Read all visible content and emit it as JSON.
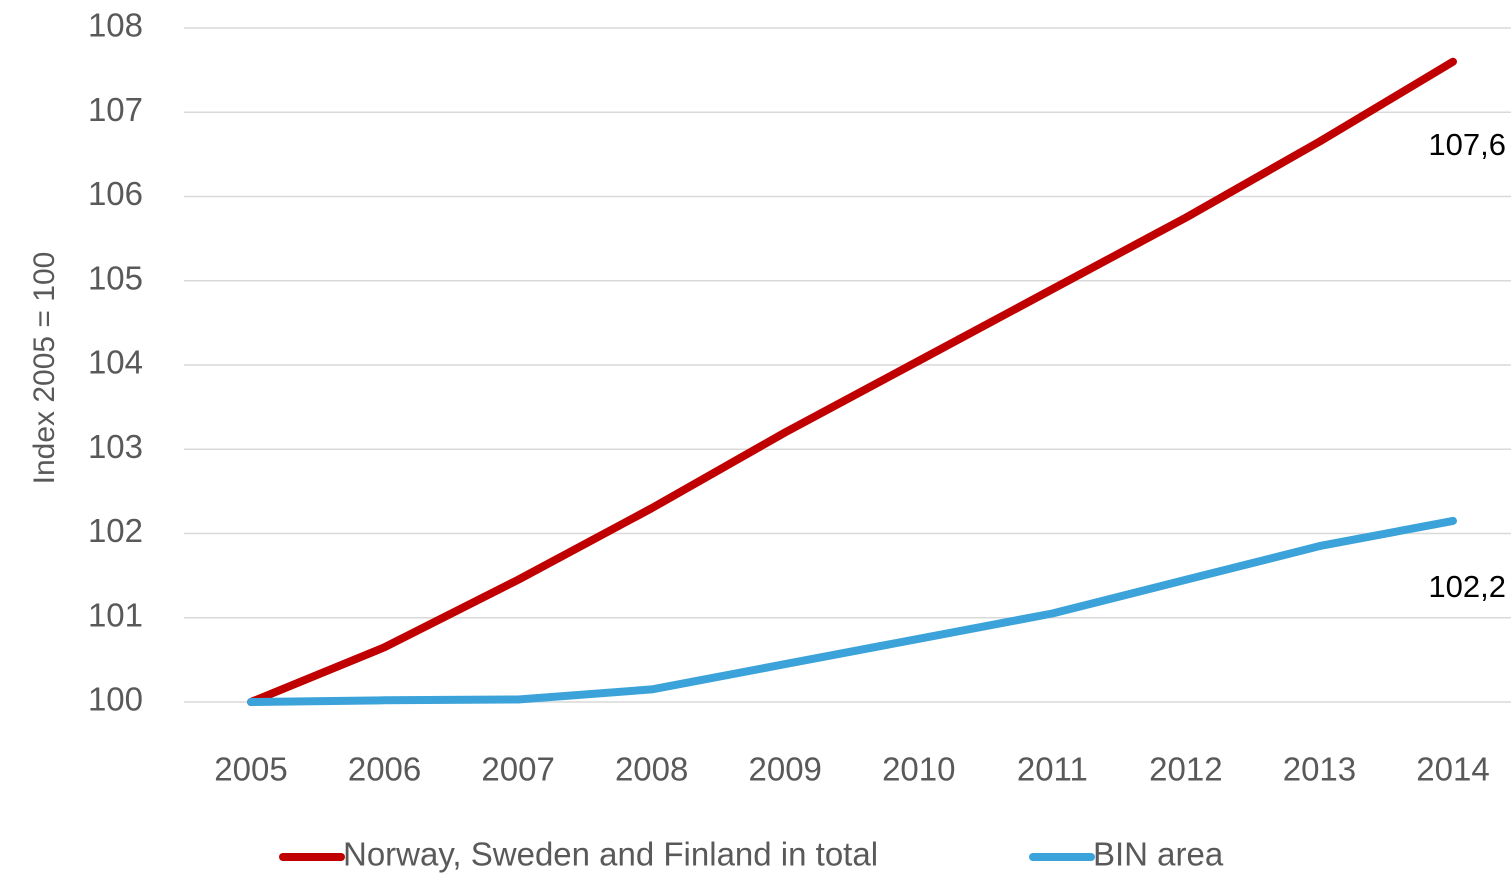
{
  "chart_data": {
    "type": "line",
    "x": [
      "2005",
      "2006",
      "2007",
      "2008",
      "2009",
      "2010",
      "2011",
      "2012",
      "2013",
      "2014"
    ],
    "series": [
      {
        "name": "Norway, Sweden and Finland in total",
        "color": "#C00000",
        "values": [
          100.0,
          100.65,
          101.45,
          102.3,
          103.2,
          104.05,
          104.9,
          105.75,
          106.65,
          107.6
        ],
        "end_label": "107,6"
      },
      {
        "name": "BIN area",
        "color": "#3BA3D9",
        "values": [
          100.0,
          100.02,
          100.03,
          100.15,
          100.45,
          100.75,
          101.05,
          101.45,
          101.85,
          102.15
        ],
        "end_label": "102,2"
      }
    ],
    "title": "",
    "xlabel": "",
    "ylabel": "Index 2005 = 100",
    "ylim": [
      100,
      108
    ],
    "yticks": [
      "100",
      "101",
      "102",
      "103",
      "104",
      "105",
      "106",
      "107",
      "108"
    ],
    "grid": true,
    "legend_position": "bottom"
  }
}
